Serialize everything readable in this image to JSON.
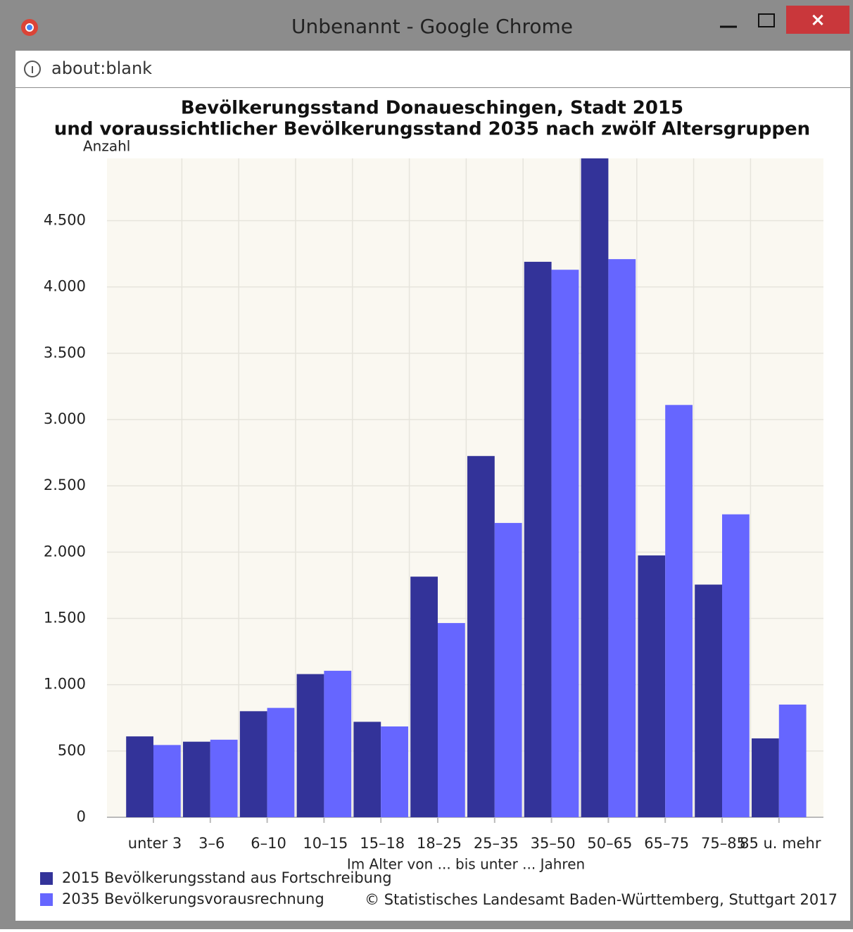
{
  "window": {
    "title": "Unbenannt - Google Chrome",
    "url": "about:blank",
    "close": "×"
  },
  "chart_data": {
    "type": "bar",
    "title": [
      "Bevölkerungsstand Donaueschingen, Stadt 2015",
      "und voraussichtlicher Bevölkerungsstand 2035 nach zwölf Altersgruppen"
    ],
    "ylabel": "Anzahl",
    "xlabel": "Im Alter von ... bis unter ... Jahren",
    "source": "© Statistisches Landesamt Baden-Württemberg, Stuttgart 2017",
    "categories": [
      "unter 3",
      "3–6",
      "6–10",
      "10–15",
      "15–18",
      "18–25",
      "25–35",
      "35–50",
      "50–65",
      "65–75",
      "75–85",
      "85 u. mehr"
    ],
    "series": [
      {
        "name": "2015 Bevölkerungsstand aus Fortschreibung",
        "color": "#333399",
        "values": [
          610,
          570,
          800,
          1080,
          720,
          1815,
          2725,
          4190,
          4970,
          1975,
          1755,
          595
        ]
      },
      {
        "name": "2035 Bevölkerungsvorausrechnung",
        "color": "#6666ff",
        "values": [
          545,
          585,
          825,
          1105,
          685,
          1465,
          2220,
          4130,
          4210,
          3110,
          2285,
          850
        ]
      }
    ],
    "ylim": [
      0,
      4970
    ],
    "yticks": [
      0,
      500,
      {
        "value": 1000,
        "label": "1.000"
      },
      {
        "value": 1500,
        "label": "1.500"
      },
      {
        "value": 2000,
        "label": "2.000"
      },
      {
        "value": 2500,
        "label": "2.500"
      },
      {
        "value": 3000,
        "label": "3.000"
      },
      {
        "value": 3500,
        "label": "3.500"
      },
      {
        "value": 4000,
        "label": "4.000"
      },
      {
        "value": 4500,
        "label": "4.500"
      }
    ],
    "grid": true,
    "legend": "bottom-left"
  }
}
